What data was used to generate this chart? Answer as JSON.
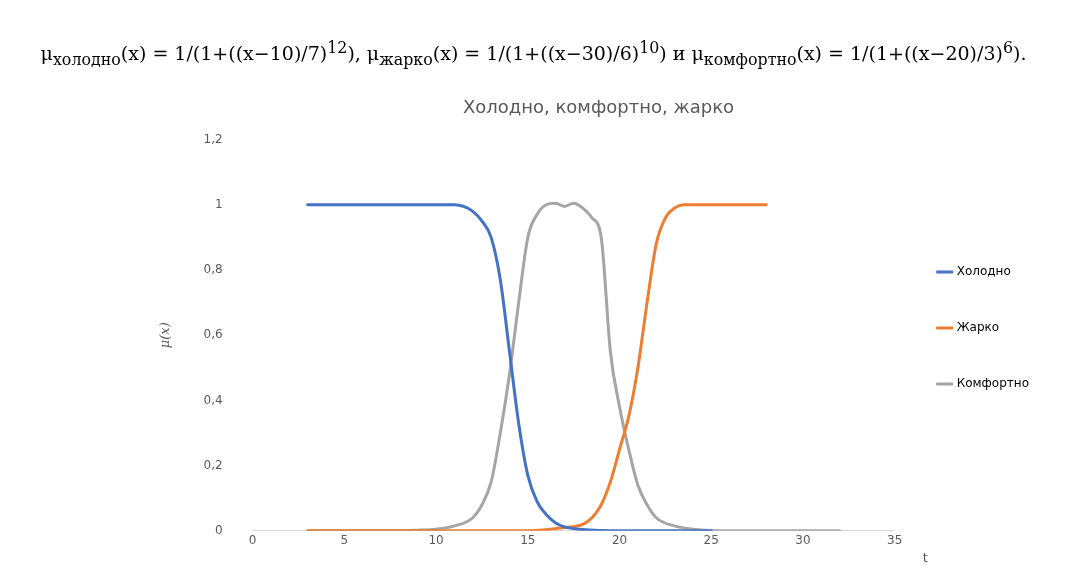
{
  "chart_data": {
    "type": "line",
    "title": "Холодно, комфортно, жарко",
    "xlabel": "t",
    "ylabel": "μ(x)",
    "annotations": [
      "μ$_{холодно}$(x) = 1/(1+((x−10)/7)$^{12}$),  μ$_{жарко}$(x) = 1/(1+((x−30)/6)$^{10}$)  и  μ$_{комфортно}$(x) = 1/(1+((x−20)/3)$^{6}$)."
    ],
    "xlim": [
      0,
      35
    ],
    "xticks": [
      0,
      5,
      10,
      15,
      20,
      25,
      30,
      35
    ],
    "ylim": [
      0,
      1.2
    ],
    "yticks": [
      0,
      {
        "value": 0.2,
        "label": "0,2"
      },
      {
        "value": 0.4,
        "label": "0,4"
      },
      {
        "value": 0.6,
        "label": "0,6"
      },
      {
        "value": 0.8,
        "label": "0,8"
      },
      1,
      {
        "value": 1.2,
        "label": "1,2"
      }
    ],
    "grid": false,
    "legend": "right",
    "marker": "none",
    "line_style": "solid",
    "series": [
      {
        "name": "Холодно",
        "color": "#4472c4",
        "x": [
          3,
          5,
          7,
          9,
          11,
          11.5,
          12,
          12.5,
          13,
          13.5,
          14,
          14.5,
          15,
          15.5,
          16,
          16.5,
          17,
          18,
          19,
          20,
          22,
          25
        ],
        "values": [
          1,
          1,
          1,
          1,
          1,
          0.995,
          0.98,
          0.95,
          0.9,
          0.77,
          0.55,
          0.33,
          0.17,
          0.09,
          0.05,
          0.025,
          0.012,
          0.004,
          0.001,
          0,
          0,
          0
        ]
      },
      {
        "name": "Жарко",
        "color": "#ed7d31",
        "x": [
          3,
          6,
          9,
          12,
          15,
          17,
          18,
          18.5,
          19,
          19.5,
          20,
          20.5,
          21,
          21.5,
          22,
          22.5,
          23,
          23.5,
          25,
          28
        ],
        "values": [
          0,
          0,
          0,
          0,
          0,
          0.01,
          0.02,
          0.04,
          0.08,
          0.15,
          0.25,
          0.35,
          0.5,
          0.7,
          0.88,
          0.96,
          0.99,
          1,
          1,
          1
        ]
      },
      {
        "name": "Комфортно",
        "color": "#a5a5a5",
        "x": [
          3,
          6,
          9,
          10,
          11,
          12,
          12.5,
          13,
          13.5,
          14,
          14.5,
          15,
          15.5,
          16,
          16.5,
          17,
          17.5,
          18,
          18.5,
          19,
          19.5,
          20,
          20.5,
          21,
          21.5,
          22,
          23,
          24,
          26,
          29,
          32
        ],
        "values": [
          0,
          0,
          0.002,
          0.005,
          0.015,
          0.04,
          0.08,
          0.15,
          0.3,
          0.48,
          0.7,
          0.9,
          0.97,
          1,
          1.005,
          0.995,
          1.005,
          0.99,
          0.96,
          0.9,
          0.55,
          0.38,
          0.25,
          0.14,
          0.08,
          0.04,
          0.015,
          0.005,
          0,
          0,
          0
        ]
      }
    ]
  }
}
